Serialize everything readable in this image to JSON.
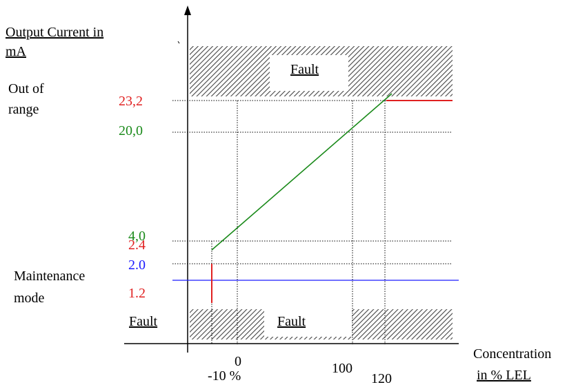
{
  "y_axis": {
    "title_line1": "Output Current in",
    "title_line2": "mA"
  },
  "x_axis": {
    "title_line1": "Concentration",
    "title_line2": "in % LEL",
    "tick_labels": {
      "zero": "0",
      "minus10": "-10 %",
      "hundred": "100",
      "one_twenty": "120"
    }
  },
  "zones": {
    "out_of_range_line1": "Out of",
    "out_of_range_line2": "range",
    "maintenance_line1": "Maintenance",
    "maintenance_line2": "mode",
    "fault_top": "Fault",
    "fault_bottom_left": "Fault",
    "fault_bottom_center": "Fault"
  },
  "levels": {
    "v23_2": "23,2",
    "v20_0": "20,0",
    "v4_0": "4,0",
    "v2_4": "2.4",
    "v2_0": "2.0",
    "v1_2": "1.2"
  },
  "colors": {
    "green": "#1a8a1a",
    "red": "#e02020",
    "blue": "#1a1aff",
    "black": "#000000"
  }
}
